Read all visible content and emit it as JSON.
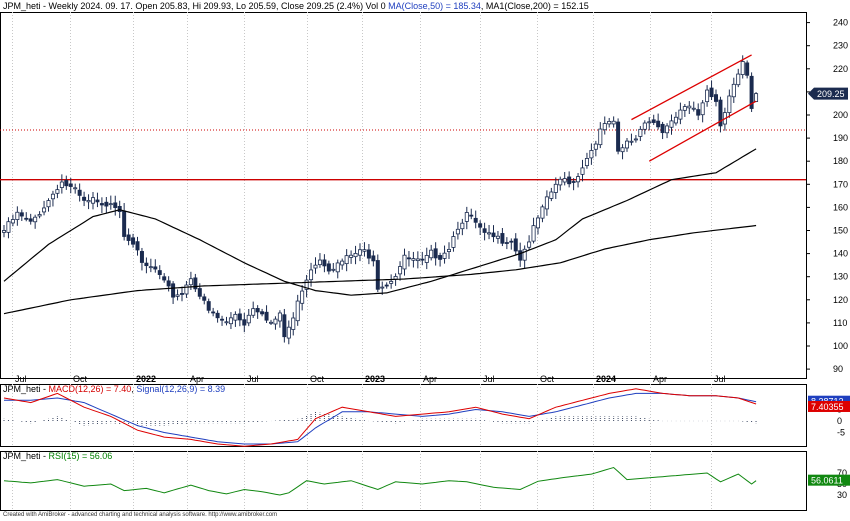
{
  "header": {
    "text_prefix": "JPM_heti - Weekly 2024. 09. 17. Open 205.83, Hi 209.93, Lo 205.59, Close 209.25 (2.4%) Vol 0 ",
    "ma50_text": "MA(Close,50) = 185.34",
    "ma200_text": ", MA1(Close,200) = 152.15"
  },
  "macd_header": {
    "prefix": "JPM_heti - ",
    "macd_text": "MACD(12,26) = 7.40",
    "sep": ", ",
    "signal_text": "Signal(12,26,9) = 8.39"
  },
  "rsi_header": {
    "prefix": "JPM_heti - ",
    "rsi_text": "RSI(15) = 56.06"
  },
  "credit": "Created with AmiBroker - advanced charting and technical analysis software. http://www.amibroker.com",
  "colors": {
    "candle": "#1b2b4f",
    "ma_line": "#000000",
    "channel": "#dd0000",
    "hline": "#cc0000",
    "macd": "#dd0000",
    "signal": "#1f3fbf",
    "rsi": "#118811",
    "price_badge": "#1b2b4f"
  },
  "chart_data": [
    {
      "type": "candlestick",
      "title": "JPM_heti - Weekly",
      "x_tick_labels": [
        "Jul",
        "Oct",
        "2022",
        "Apr",
        "Jul",
        "Oct",
        "2023",
        "Apr",
        "Jul",
        "Oct",
        "2024",
        "Apr",
        "Jul"
      ],
      "y_tick_labels": [
        "90",
        "100",
        "110",
        "120",
        "130",
        "140",
        "150",
        "160",
        "170",
        "180",
        "190",
        "200",
        "210",
        "220",
        "230",
        "240"
      ],
      "ylim": [
        88,
        245
      ],
      "last": {
        "open": 205.83,
        "high": 209.93,
        "low": 205.59,
        "close": 209.25
      },
      "price_label": "209.25",
      "close_anchors": [
        [
          0,
          150
        ],
        [
          3,
          157
        ],
        [
          6,
          153
        ],
        [
          8,
          158
        ],
        [
          10,
          163
        ],
        [
          12,
          169
        ],
        [
          13,
          171
        ],
        [
          16,
          167
        ],
        [
          18,
          162
        ],
        [
          20,
          163
        ],
        [
          22,
          160
        ],
        [
          24,
          163
        ],
        [
          26,
          159
        ],
        [
          27,
          149
        ],
        [
          29,
          145
        ],
        [
          31,
          135
        ],
        [
          34,
          133
        ],
        [
          36,
          127
        ],
        [
          38,
          122
        ],
        [
          40,
          123
        ],
        [
          42,
          130
        ],
        [
          44,
          122
        ],
        [
          46,
          115
        ],
        [
          48,
          112
        ],
        [
          50,
          110
        ],
        [
          52,
          114
        ],
        [
          54,
          110
        ],
        [
          56,
          117
        ],
        [
          58,
          115
        ],
        [
          60,
          110
        ],
        [
          62,
          113
        ],
        [
          63,
          104
        ],
        [
          65,
          112
        ],
        [
          67,
          125
        ],
        [
          69,
          134
        ],
        [
          71,
          138
        ],
        [
          73,
          134
        ],
        [
          75,
          135
        ],
        [
          77,
          138
        ],
        [
          79,
          140
        ],
        [
          81,
          141
        ],
        [
          83,
          138
        ],
        [
          84,
          126
        ],
        [
          86,
          127
        ],
        [
          88,
          131
        ],
        [
          90,
          138
        ],
        [
          92,
          137
        ],
        [
          94,
          136
        ],
        [
          96,
          140
        ],
        [
          98,
          139
        ],
        [
          100,
          143
        ],
        [
          102,
          152
        ],
        [
          104,
          157
        ],
        [
          106,
          153
        ],
        [
          108,
          148
        ],
        [
          110,
          147
        ],
        [
          112,
          146
        ],
        [
          114,
          146
        ],
        [
          116,
          138
        ],
        [
          118,
          146
        ],
        [
          120,
          155
        ],
        [
          122,
          163
        ],
        [
          124,
          170
        ],
        [
          126,
          172
        ],
        [
          128,
          171
        ],
        [
          130,
          178
        ],
        [
          132,
          185
        ],
        [
          134,
          193
        ],
        [
          136,
          197
        ],
        [
          137,
          196
        ],
        [
          138,
          183
        ],
        [
          140,
          188
        ],
        [
          142,
          190
        ],
        [
          144,
          198
        ],
        [
          146,
          197
        ],
        [
          148,
          193
        ],
        [
          150,
          196
        ],
        [
          152,
          202
        ],
        [
          154,
          203
        ],
        [
          156,
          200
        ],
        [
          158,
          212
        ],
        [
          160,
          206
        ],
        [
          161,
          196
        ],
        [
          163,
          209
        ],
        [
          165,
          217
        ],
        [
          166,
          222
        ],
        [
          167,
          216
        ],
        [
          168,
          202
        ],
        [
          169,
          209.25
        ]
      ],
      "ma50_anchors": [
        [
          0,
          128
        ],
        [
          10,
          144
        ],
        [
          20,
          156
        ],
        [
          26,
          159
        ],
        [
          34,
          155
        ],
        [
          44,
          146
        ],
        [
          54,
          136
        ],
        [
          63,
          128
        ],
        [
          70,
          124
        ],
        [
          78,
          122
        ],
        [
          86,
          123
        ],
        [
          96,
          128
        ],
        [
          106,
          134
        ],
        [
          116,
          140
        ],
        [
          124,
          146
        ],
        [
          130,
          155
        ],
        [
          140,
          163
        ],
        [
          150,
          172
        ],
        [
          160,
          175
        ],
        [
          169,
          185.34
        ]
      ],
      "ma200_anchors": [
        [
          0,
          114
        ],
        [
          15,
          120
        ],
        [
          30,
          124
        ],
        [
          45,
          126
        ],
        [
          60,
          127
        ],
        [
          75,
          128
        ],
        [
          90,
          129
        ],
        [
          105,
          131
        ],
        [
          115,
          133
        ],
        [
          125,
          136
        ],
        [
          135,
          142
        ],
        [
          145,
          146
        ],
        [
          155,
          149
        ],
        [
          169,
          152.15
        ]
      ],
      "channel_lines": [
        {
          "start": [
            141,
            198
          ],
          "end": [
            168,
            226
          ]
        },
        {
          "start": [
            145,
            180
          ],
          "end": [
            169,
            206
          ]
        }
      ],
      "horizontal_lines": [
        {
          "y": 172,
          "style": "solid"
        },
        {
          "y": 193.5,
          "style": "dotted"
        }
      ]
    },
    {
      "type": "line",
      "title": "MACD",
      "y_tick_labels": [
        "5",
        "0",
        "-5"
      ],
      "ylim": [
        -17,
        18
      ],
      "last_values": {
        "macd": 7.4,
        "signal": 8.39
      },
      "value_labels": {
        "signal": "8.38712",
        "macd": "7.40355"
      },
      "macd_anchors": [
        [
          0,
          10
        ],
        [
          6,
          8
        ],
        [
          12,
          12
        ],
        [
          18,
          6
        ],
        [
          24,
          2
        ],
        [
          30,
          -4
        ],
        [
          36,
          -7
        ],
        [
          42,
          -8
        ],
        [
          48,
          -10
        ],
        [
          54,
          -11
        ],
        [
          60,
          -10
        ],
        [
          66,
          -8
        ],
        [
          70,
          1
        ],
        [
          76,
          6
        ],
        [
          82,
          4
        ],
        [
          88,
          2
        ],
        [
          94,
          3
        ],
        [
          100,
          4
        ],
        [
          106,
          6
        ],
        [
          112,
          3
        ],
        [
          118,
          1
        ],
        [
          124,
          6
        ],
        [
          130,
          9
        ],
        [
          136,
          12
        ],
        [
          142,
          14
        ],
        [
          148,
          12
        ],
        [
          154,
          11
        ],
        [
          160,
          11
        ],
        [
          165,
          10
        ],
        [
          169,
          7.4
        ]
      ],
      "signal_anchors": [
        [
          0,
          9
        ],
        [
          6,
          9
        ],
        [
          12,
          10
        ],
        [
          18,
          8
        ],
        [
          24,
          3
        ],
        [
          30,
          -2
        ],
        [
          36,
          -5
        ],
        [
          42,
          -7
        ],
        [
          48,
          -9
        ],
        [
          54,
          -10
        ],
        [
          60,
          -10
        ],
        [
          66,
          -9
        ],
        [
          70,
          -3
        ],
        [
          76,
          4
        ],
        [
          82,
          4
        ],
        [
          88,
          3
        ],
        [
          94,
          2
        ],
        [
          100,
          3
        ],
        [
          106,
          5
        ],
        [
          112,
          4
        ],
        [
          118,
          2
        ],
        [
          124,
          4
        ],
        [
          130,
          7
        ],
        [
          136,
          10
        ],
        [
          142,
          12
        ],
        [
          148,
          12
        ],
        [
          154,
          11
        ],
        [
          160,
          11
        ],
        [
          165,
          10
        ],
        [
          169,
          8.39
        ]
      ]
    },
    {
      "type": "line",
      "title": "RSI",
      "y_tick_labels": [
        "70",
        "50",
        "30"
      ],
      "ylim": [
        10,
        90
      ],
      "last_value": 56.06,
      "value_label": "56.0611",
      "rsi_anchors": [
        [
          0,
          56
        ],
        [
          6,
          52
        ],
        [
          12,
          58
        ],
        [
          18,
          46
        ],
        [
          24,
          50
        ],
        [
          27,
          38
        ],
        [
          32,
          42
        ],
        [
          36,
          34
        ],
        [
          42,
          48
        ],
        [
          46,
          38
        ],
        [
          50,
          32
        ],
        [
          54,
          40
        ],
        [
          58,
          36
        ],
        [
          62,
          30
        ],
        [
          64,
          34
        ],
        [
          68,
          56
        ],
        [
          72,
          50
        ],
        [
          78,
          56
        ],
        [
          84,
          40
        ],
        [
          88,
          54
        ],
        [
          94,
          50
        ],
        [
          100,
          56
        ],
        [
          104,
          54
        ],
        [
          110,
          44
        ],
        [
          116,
          40
        ],
        [
          120,
          55
        ],
        [
          126,
          62
        ],
        [
          132,
          68
        ],
        [
          137,
          80
        ],
        [
          140,
          58
        ],
        [
          146,
          62
        ],
        [
          152,
          66
        ],
        [
          158,
          70
        ],
        [
          161,
          54
        ],
        [
          165,
          68
        ],
        [
          168,
          50
        ],
        [
          169,
          56.06
        ]
      ]
    }
  ]
}
